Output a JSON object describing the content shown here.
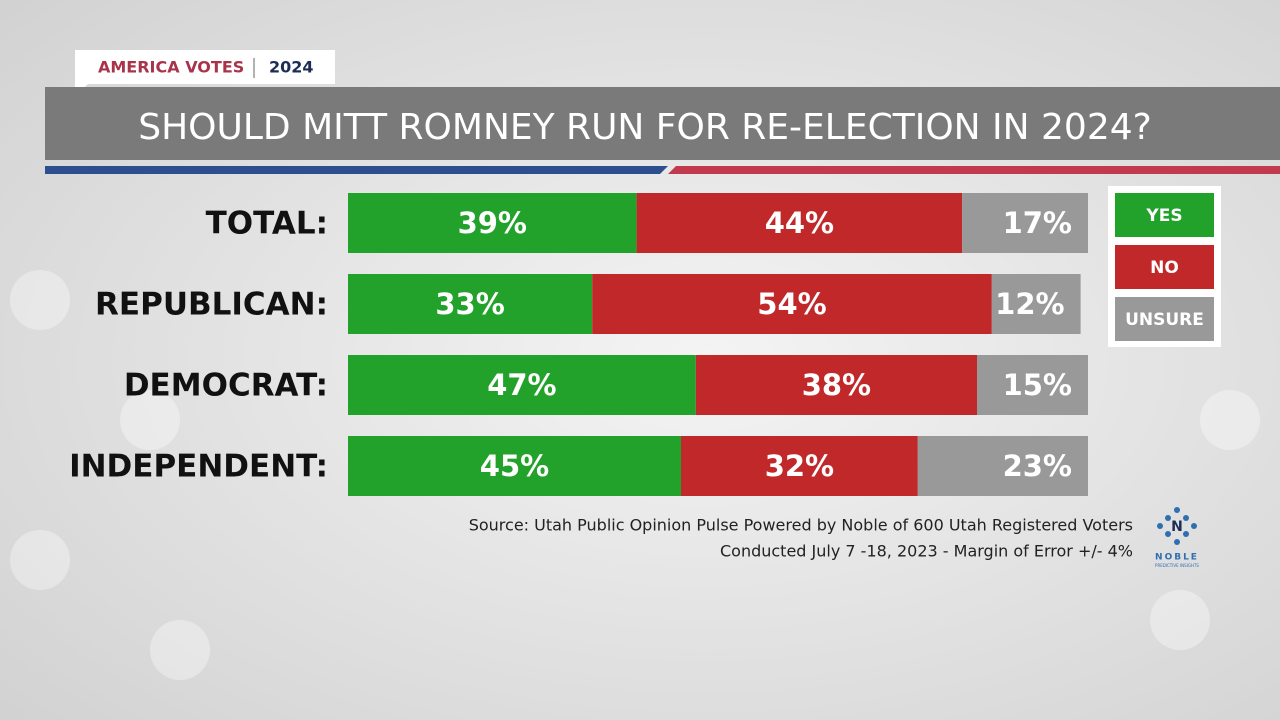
{
  "chart_data": {
    "type": "stacked-bar-horizontal",
    "kicker": "AMERICA VOTES",
    "kicker_year": "2024",
    "title": "SHOULD MITT ROMNEY RUN FOR RE-ELECTION IN 2024?",
    "categories": [
      "TOTAL:",
      "REPUBLICAN:",
      "DEMOCRAT:",
      "INDEPENDENT:"
    ],
    "series": [
      {
        "name": "YES",
        "color": "#22a22a",
        "values": [
          39,
          33,
          47,
          45
        ],
        "value_labels": [
          "39%",
          "33%",
          "47%",
          "45%"
        ]
      },
      {
        "name": "NO",
        "color": "#c0282a",
        "values": [
          44,
          54,
          38,
          32
        ],
        "value_labels": [
          "44%",
          "54%",
          "38%",
          "32%"
        ]
      },
      {
        "name": "UNSURE",
        "color": "#999999",
        "values": [
          17,
          12,
          15,
          23
        ],
        "value_labels": [
          "17%",
          "12%",
          "15%",
          "23%"
        ]
      }
    ],
    "xlim": [
      0,
      100
    ],
    "legend": "right",
    "source": [
      "Source: Utah Public Opinion Pulse Powered by Noble of 600 Utah Registered Voters",
      "Conducted July 7 -18, 2023 - Margin of Error +/- 4%"
    ],
    "logo_text": "NOBLE",
    "logo_subtext": "PREDICTIVE INSIGHTS"
  }
}
